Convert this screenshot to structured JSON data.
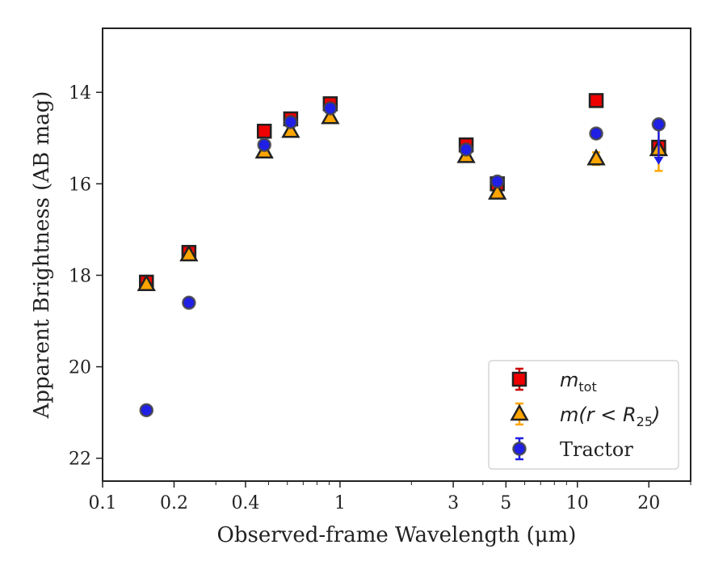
{
  "chart_data": {
    "type": "scatter",
    "xlabel": "Observed-frame Wavelength (μm)",
    "ylabel": "Apparent Brightness (AB mag)",
    "xscale": "log",
    "xlim": [
      0.1,
      30
    ],
    "ylim": [
      22.5,
      12.6
    ],
    "y_inverted": true,
    "x_ticks": [
      {
        "value": 0.1,
        "label": "0.1"
      },
      {
        "value": 0.2,
        "label": "0.2"
      },
      {
        "value": 0.4,
        "label": "0.4"
      },
      {
        "value": 1,
        "label": "1"
      },
      {
        "value": 3,
        "label": "3"
      },
      {
        "value": 5,
        "label": "5"
      },
      {
        "value": 10,
        "label": "10"
      },
      {
        "value": 20,
        "label": "20"
      }
    ],
    "y_ticks": [
      {
        "value": 14,
        "label": "14"
      },
      {
        "value": 16,
        "label": "16"
      },
      {
        "value": 18,
        "label": "18"
      },
      {
        "value": 20,
        "label": "20"
      },
      {
        "value": 22,
        "label": "22"
      }
    ],
    "legend": {
      "placement": "lower-right",
      "entries": [
        {
          "label": "m",
          "subscript": "tot",
          "math": true
        },
        {
          "label": "m(r < R",
          "subscript": "25",
          "suffix": ")",
          "math": true
        },
        {
          "label": "Tractor",
          "math": false
        }
      ]
    },
    "grid": false,
    "series": [
      {
        "name": "m_tot",
        "marker": "square",
        "color": "#ee0000",
        "edge": "#222222",
        "errcolor": "#cc0000",
        "points": [
          {
            "x": 0.153,
            "y": 18.15,
            "err": 0.05
          },
          {
            "x": 0.231,
            "y": 17.5,
            "err": 0.05
          },
          {
            "x": 0.48,
            "y": 14.85,
            "err": 0.03
          },
          {
            "x": 0.62,
            "y": 14.58,
            "err": 0.03
          },
          {
            "x": 0.91,
            "y": 14.25,
            "err": 0.03
          },
          {
            "x": 3.4,
            "y": 15.15,
            "err": 0.03
          },
          {
            "x": 4.6,
            "y": 16.0,
            "err": 0.03
          },
          {
            "x": 12.0,
            "y": 14.18,
            "err": 0.03
          },
          {
            "x": 22.0,
            "y": 15.2,
            "err": 0.05
          }
        ]
      },
      {
        "name": "m(r<R25)",
        "marker": "triangle",
        "color": "#ffa500",
        "edge": "#222222",
        "errcolor": "#ffa500",
        "points": [
          {
            "x": 0.153,
            "y": 18.2,
            "err": 0.05
          },
          {
            "x": 0.231,
            "y": 17.55,
            "err": 0.05
          },
          {
            "x": 0.48,
            "y": 15.3,
            "err": 0.03
          },
          {
            "x": 0.62,
            "y": 14.85,
            "err": 0.03
          },
          {
            "x": 0.91,
            "y": 14.55,
            "err": 0.03
          },
          {
            "x": 3.4,
            "y": 15.4,
            "err": 0.03
          },
          {
            "x": 4.6,
            "y": 16.2,
            "err": 0.03
          },
          {
            "x": 12.0,
            "y": 15.45,
            "err": 0.12
          },
          {
            "x": 22.0,
            "y": 15.25,
            "err": 0.45
          }
        ]
      },
      {
        "name": "Tractor",
        "marker": "circle",
        "color": "#1f1fe6",
        "edge": "#444444",
        "errcolor": "#1f1fe6",
        "points": [
          {
            "x": 0.153,
            "y": 20.95,
            "err": 0.05
          },
          {
            "x": 0.231,
            "y": 18.6,
            "err": 0.05
          },
          {
            "x": 0.48,
            "y": 15.15,
            "err": 0.03
          },
          {
            "x": 0.62,
            "y": 14.65,
            "err": 0.03
          },
          {
            "x": 0.91,
            "y": 14.35,
            "err": 0.03
          },
          {
            "x": 3.4,
            "y": 15.25,
            "err": 0.03
          },
          {
            "x": 4.6,
            "y": 15.95,
            "err": 0.03
          },
          {
            "x": 12.0,
            "y": 14.9,
            "err": 0.03
          },
          {
            "x": 22.0,
            "y": 14.7,
            "err": 0.0,
            "upper_limit_to": 15.55
          }
        ]
      }
    ]
  }
}
